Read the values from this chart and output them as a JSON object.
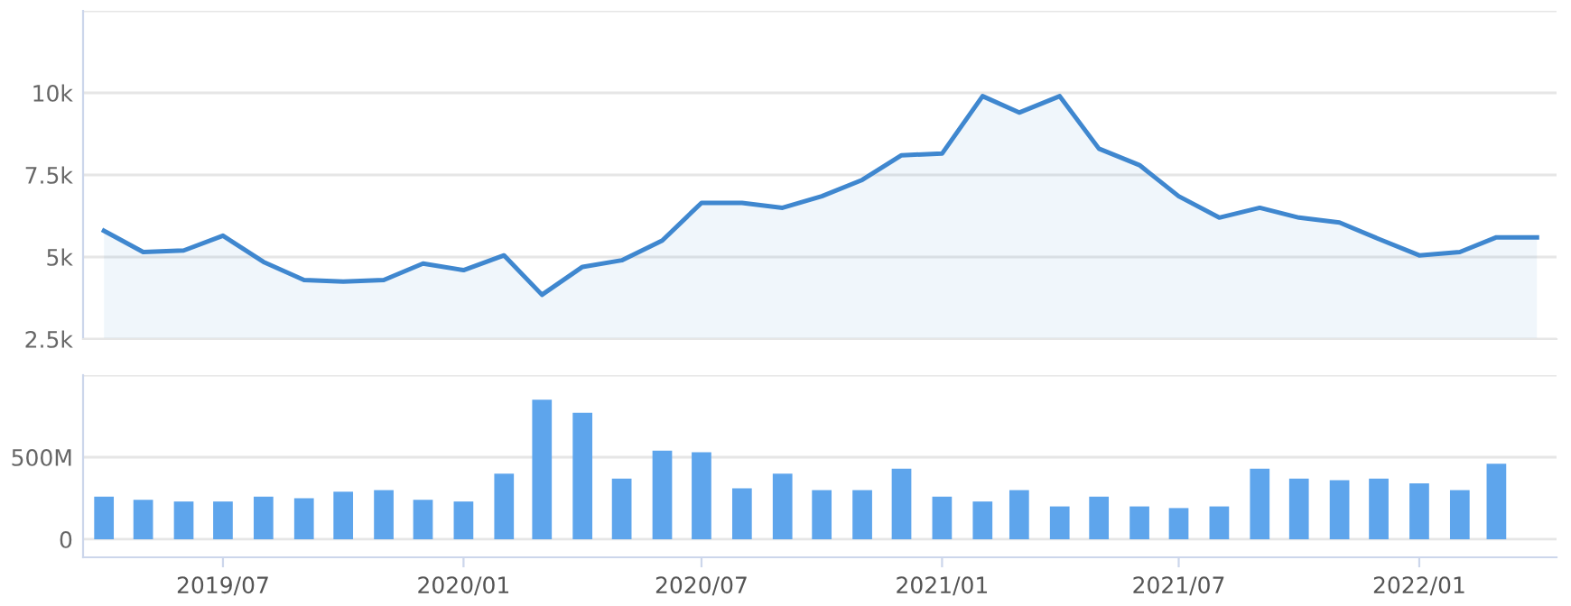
{
  "chart_data": [
    {
      "type": "area",
      "x": [
        "2019-04",
        "2019-05",
        "2019-06",
        "2019-07",
        "2019-08",
        "2019-09",
        "2019-10",
        "2019-11",
        "2019-12",
        "2020-01",
        "2020-02",
        "2020-03",
        "2020-04",
        "2020-05",
        "2020-06",
        "2020-07",
        "2020-08",
        "2020-09",
        "2020-10",
        "2020-11",
        "2020-12",
        "2021-01",
        "2021-02",
        "2021-03",
        "2021-04",
        "2021-05",
        "2021-06",
        "2021-07",
        "2021-08",
        "2021-09",
        "2021-10",
        "2021-11",
        "2021-12",
        "2022-01",
        "2022-02",
        "2022-03",
        "2022-04"
      ],
      "series": [
        {
          "color": "#3f87cf",
          "values": [
            5800,
            5150,
            5200,
            5650,
            4850,
            4300,
            4250,
            4300,
            4800,
            4600,
            5050,
            3850,
            4700,
            4900,
            5500,
            6650,
            6650,
            6500,
            6850,
            7350,
            8100,
            8150,
            9900,
            9400,
            9900,
            8300,
            7800,
            6850,
            6200,
            6500,
            6200,
            6050,
            5550,
            5050,
            5150,
            5600,
            5600
          ]
        }
      ],
      "xlim": [
        "2019-03-16",
        "2022-04-16"
      ],
      "xticks": [
        {
          "value": "2019-07",
          "label": null
        },
        {
          "value": "2020-01",
          "label": null
        },
        {
          "value": "2020-07",
          "label": null
        },
        {
          "value": "2021-01",
          "label": null
        },
        {
          "value": "2021-07",
          "label": null
        },
        {
          "value": "2022-01",
          "label": null
        }
      ],
      "ylim": [
        2500,
        12500
      ],
      "yticks": [
        {
          "value": 2500,
          "label": "2.5k"
        },
        {
          "value": 5000,
          "label": "5k"
        },
        {
          "value": 7500,
          "label": "7.5k"
        },
        {
          "value": 10000,
          "label": "10k"
        },
        {
          "value": 12500,
          "label": null
        }
      ],
      "grid": "y",
      "tick_labels": "y"
    },
    {
      "type": "bar",
      "x": [
        "2019-04",
        "2019-05",
        "2019-06",
        "2019-07",
        "2019-08",
        "2019-09",
        "2019-10",
        "2019-11",
        "2019-12",
        "2020-01",
        "2020-02",
        "2020-03",
        "2020-04",
        "2020-05",
        "2020-06",
        "2020-07",
        "2020-08",
        "2020-09",
        "2020-10",
        "2020-11",
        "2020-12",
        "2021-01",
        "2021-02",
        "2021-03",
        "2021-04",
        "2021-05",
        "2021-06",
        "2021-07",
        "2021-08",
        "2021-09",
        "2021-10",
        "2021-11",
        "2021-12",
        "2022-01",
        "2022-02",
        "2022-03"
      ],
      "series": [
        {
          "color": "#5ea5ec",
          "values": [
            260,
            240,
            230,
            230,
            260,
            250,
            290,
            300,
            240,
            230,
            400,
            850,
            770,
            370,
            540,
            530,
            310,
            400,
            300,
            300,
            430,
            260,
            230,
            300,
            200,
            260,
            200,
            190,
            200,
            430,
            370,
            360,
            370,
            340,
            300,
            460
          ]
        }
      ],
      "xlim": [
        "2019-03-16",
        "2022-04-16"
      ],
      "xticks": [
        {
          "value": "2019-07",
          "label": "2019/07"
        },
        {
          "value": "2020-01",
          "label": "2020/01"
        },
        {
          "value": "2020-07",
          "label": "2020/07"
        },
        {
          "value": "2021-01",
          "label": "2021/01"
        },
        {
          "value": "2021-07",
          "label": "2021/07"
        },
        {
          "value": "2022-01",
          "label": "2022/01"
        }
      ],
      "ylim": [
        -110,
        1000
      ],
      "yticks": [
        {
          "value": 0,
          "label": "0"
        },
        {
          "value": 500,
          "label": "500M"
        },
        {
          "value": 1000,
          "label": null
        }
      ],
      "grid": "y"
    }
  ]
}
